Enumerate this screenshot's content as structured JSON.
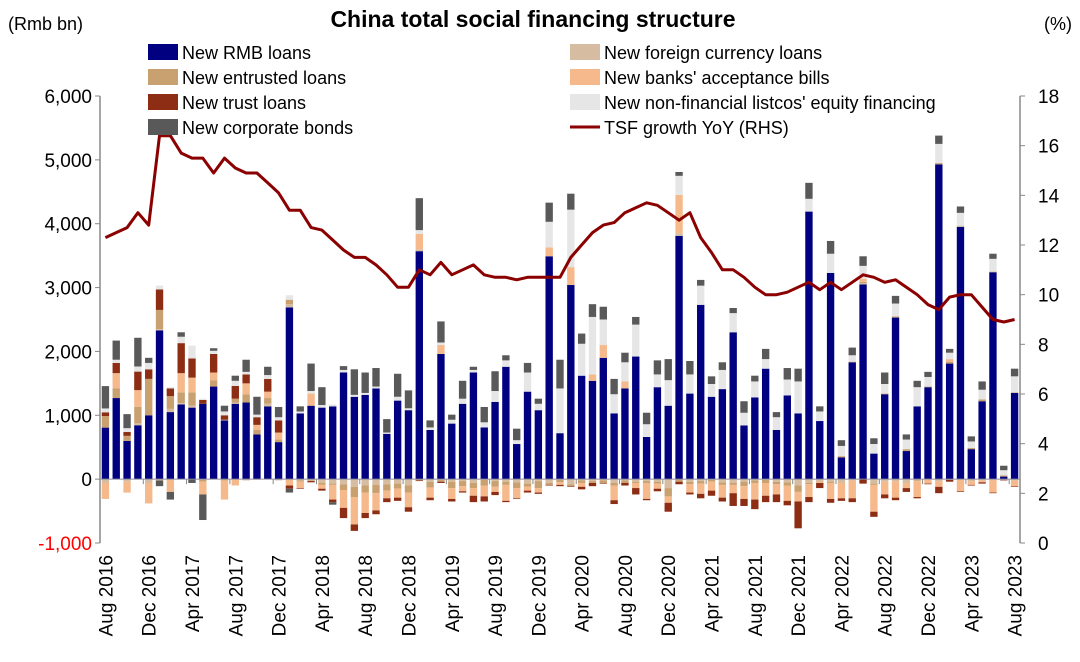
{
  "chart_data": {
    "type": "bar",
    "title": "China total social financing structure",
    "ylabel": "(Rmb bn)",
    "y2label": "(%)",
    "ylim": [
      -1000,
      6000
    ],
    "y2lim": [
      0,
      18
    ],
    "yticks": [
      "-1,000",
      "0",
      "1,000",
      "2,000",
      "3,000",
      "4,000",
      "5,000",
      "6,000"
    ],
    "ytick_values": [
      -1000,
      0,
      1000,
      2000,
      3000,
      4000,
      5000,
      6000
    ],
    "y2ticks": [
      "0",
      "2",
      "4",
      "6",
      "8",
      "10",
      "12",
      "14",
      "16",
      "18"
    ],
    "y2tick_values": [
      0,
      2,
      4,
      6,
      8,
      10,
      12,
      14,
      16,
      18
    ],
    "negative_tick_color": "#ff0000",
    "start": {
      "year": 2016,
      "month": 8
    },
    "n_months": 85,
    "xtick_labels": [
      "Aug 2016",
      "Dec 2016",
      "Apr 2017",
      "Aug 2017",
      "Dec 2017",
      "Apr 2018",
      "Aug 2018",
      "Dec 2018",
      "Apr 2019",
      "Aug 2019",
      "Dec 2019",
      "Apr 2020",
      "Aug 2020",
      "Dec 2020",
      "Apr 2021",
      "Aug 2021",
      "Dec 2021",
      "Apr 2022",
      "Aug 2022",
      "Dec 2022",
      "Apr 2023",
      "Aug 2023"
    ],
    "legend_position": "top",
    "series": [
      {
        "name": "New RMB loans",
        "color": "#000080",
        "values": [
          807,
          1270,
          598,
          844,
          1000,
          2330,
          1050,
          1170,
          1120,
          1180,
          1450,
          920,
          1180,
          1200,
          700,
          1140,
          580,
          2690,
          1030,
          1150,
          1120,
          1140,
          1670,
          1290,
          1320,
          1420,
          710,
          1230,
          1080,
          3570,
          770,
          1960,
          870,
          1180,
          1670,
          810,
          1210,
          1760,
          550,
          1370,
          1080,
          3490,
          720,
          3040,
          1620,
          1540,
          1900,
          1030,
          1420,
          1920,
          660,
          1440,
          1150,
          3810,
          1340,
          2730,
          1290,
          1410,
          2300,
          840,
          1280,
          1730,
          770,
          1310,
          1030,
          4190,
          910,
          3230,
          340,
          1830,
          3050,
          400,
          1330,
          2530,
          440,
          1140,
          1440,
          4930,
          1810,
          3950,
          470,
          1220,
          3240,
          40,
          1350
        ]
      },
      {
        "name": "New foreign currency loans",
        "color": "#d6bca0",
        "values": [
          -60,
          0,
          -40,
          30,
          -60,
          20,
          50,
          20,
          30,
          -10,
          0,
          10,
          20,
          -20,
          -10,
          40,
          -20,
          50,
          -20,
          -20,
          -60,
          -70,
          -80,
          -120,
          -100,
          -90,
          -80,
          -70,
          -100,
          30,
          -40,
          -10,
          -40,
          -30,
          -60,
          -10,
          -30,
          -40,
          -50,
          -70,
          -30,
          -60,
          -10,
          -80,
          -20,
          -30,
          -20,
          -60,
          -20,
          -40,
          -30,
          -40,
          -140,
          40,
          -40,
          -30,
          -10,
          -50,
          -60,
          -40,
          -20,
          -10,
          -40,
          -50,
          -100,
          -60,
          -30,
          -40,
          -60,
          -20,
          20,
          -70,
          -40,
          -30,
          -60,
          -20,
          -10,
          -30,
          -10,
          20,
          -30,
          -20,
          -10,
          0,
          -20
        ]
      },
      {
        "name": "New entrusted loans",
        "color": "#c9a170",
        "values": [
          180,
          150,
          80,
          260,
          570,
          300,
          200,
          170,
          210,
          -30,
          100,
          -20,
          60,
          130,
          70,
          90,
          40,
          70,
          -20,
          -10,
          -30,
          -20,
          -90,
          -160,
          -110,
          -130,
          -100,
          -80,
          -110,
          -20,
          -90,
          -30,
          -100,
          -80,
          -80,
          -90,
          -90,
          -50,
          -90,
          -50,
          -110,
          -30,
          -40,
          -30,
          -40,
          -30,
          -40,
          -40,
          -40,
          -20,
          -30,
          -30,
          -130,
          -40,
          -40,
          -40,
          -30,
          -40,
          -30,
          -70,
          -40,
          -50,
          -40,
          -50,
          -100,
          -20,
          -10,
          -20,
          20,
          10,
          20,
          -20,
          10,
          20,
          30,
          -10,
          10,
          20,
          30,
          -10,
          20,
          30,
          10,
          20,
          10
        ]
      },
      {
        "name": "New banks' acceptance bills",
        "color": "#f5b98c",
        "values": [
          -250,
          240,
          -170,
          260,
          -320,
          -20,
          -200,
          300,
          230,
          -200,
          120,
          -300,
          -100,
          170,
          80,
          100,
          110,
          -100,
          -100,
          190,
          -60,
          -230,
          -280,
          -430,
          -320,
          -270,
          -120,
          -140,
          -230,
          240,
          -160,
          140,
          -170,
          -80,
          -120,
          -170,
          -80,
          -250,
          -160,
          -60,
          -70,
          140,
          -40,
          280,
          -60,
          100,
          200,
          -230,
          110,
          -80,
          -250,
          -80,
          -100,
          600,
          -130,
          -160,
          -140,
          -200,
          -130,
          -200,
          -260,
          -200,
          -160,
          -240,
          -150,
          -200,
          -20,
          -250,
          -240,
          -280,
          50,
          -420,
          -200,
          -260,
          -80,
          -250,
          -60,
          -90,
          40,
          -180,
          -60,
          -30,
          -200,
          -10,
          -90
        ]
      },
      {
        "name": "New trust loans",
        "color": "#8c2d14",
        "values": [
          60,
          160,
          60,
          290,
          150,
          320,
          120,
          470,
          300,
          60,
          290,
          70,
          200,
          140,
          120,
          200,
          190,
          -50,
          -10,
          -20,
          -30,
          -40,
          -160,
          -100,
          -80,
          -60,
          -60,
          -50,
          -70,
          -10,
          -40,
          -20,
          -40,
          -20,
          -100,
          -80,
          -50,
          -20,
          -10,
          -30,
          -20,
          -10,
          -20,
          -10,
          -40,
          -50,
          -10,
          -60,
          -40,
          -100,
          -20,
          -40,
          -140,
          -40,
          -30,
          -70,
          -80,
          -60,
          -200,
          -110,
          -150,
          -100,
          -120,
          -70,
          -420,
          -80,
          -80,
          -60,
          -40,
          -60,
          -70,
          -80,
          -60,
          -40,
          -60,
          -20,
          -10,
          -100,
          -30,
          -10,
          -10,
          -20,
          -10,
          -10,
          -10
        ]
      },
      {
        "name": "New non-financial listcos' equity financing",
        "color": "#e6e6e6",
        "values": [
          60,
          50,
          60,
          80,
          100,
          60,
          20,
          100,
          200,
          20,
          50,
          60,
          80,
          40,
          40,
          60,
          50,
          70,
          30,
          40,
          40,
          30,
          40,
          30,
          30,
          30,
          20,
          60,
          30,
          60,
          40,
          40,
          60,
          80,
          40,
          80,
          170,
          100,
          60,
          300,
          100,
          400,
          700,
          900,
          500,
          900,
          400,
          300,
          300,
          500,
          200,
          200,
          400,
          300,
          300,
          300,
          200,
          300,
          300,
          200,
          250,
          150,
          200,
          250,
          500,
          200,
          150,
          300,
          160,
          100,
          200,
          150,
          150,
          200,
          150,
          300,
          150,
          300,
          100,
          200,
          100,
          150,
          200,
          80,
          250
        ]
      },
      {
        "name": "New corporate bonds",
        "color": "#595959",
        "values": [
          350,
          300,
          220,
          450,
          80,
          -90,
          -120,
          70,
          -60,
          -400,
          40,
          90,
          80,
          190,
          280,
          130,
          160,
          -60,
          80,
          430,
          280,
          -40,
          60,
          400,
          320,
          290,
          210,
          360,
          280,
          500,
          110,
          330,
          80,
          280,
          50,
          240,
          310,
          80,
          180,
          150,
          80,
          300,
          450,
          250,
          160,
          200,
          200,
          240,
          150,
          120,
          180,
          220,
          330,
          60,
          210,
          90,
          120,
          120,
          80,
          180,
          90,
          160,
          80,
          180,
          200,
          250,
          80,
          200,
          90,
          120,
          150,
          90,
          180,
          120,
          80,
          100,
          80,
          130,
          60,
          100,
          80,
          130,
          80,
          70,
          120
        ]
      },
      {
        "name": "TSF growth YoY (RHS)",
        "color": "#8b0000",
        "axis": "right",
        "type": "line",
        "values": [
          12.3,
          12.5,
          12.7,
          13.3,
          12.8,
          16.4,
          16.4,
          15.7,
          15.5,
          15.5,
          14.9,
          15.5,
          15.1,
          14.9,
          14.9,
          14.5,
          14.1,
          13.4,
          13.4,
          12.7,
          12.6,
          12.2,
          11.8,
          11.5,
          11.5,
          11.2,
          10.8,
          10.3,
          10.3,
          11.0,
          10.8,
          11.3,
          10.8,
          11.0,
          11.2,
          10.8,
          10.7,
          10.7,
          10.6,
          10.7,
          10.7,
          10.7,
          10.7,
          11.5,
          12.0,
          12.5,
          12.8,
          12.9,
          13.3,
          13.5,
          13.7,
          13.6,
          13.3,
          13.0,
          13.3,
          12.3,
          11.7,
          11.0,
          11.0,
          10.7,
          10.3,
          10.0,
          10.0,
          10.1,
          10.3,
          10.5,
          10.2,
          10.5,
          10.2,
          10.5,
          10.8,
          10.7,
          10.5,
          10.6,
          10.3,
          10.0,
          9.6,
          9.4,
          9.9,
          10.0,
          10.0,
          9.5,
          9.0,
          8.9,
          9.0
        ]
      }
    ]
  }
}
